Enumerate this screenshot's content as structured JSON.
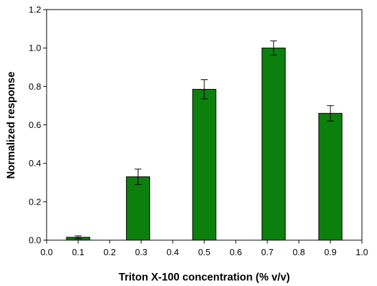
{
  "chart_data": {
    "type": "bar",
    "x": [
      0.1,
      0.29,
      0.5,
      0.72,
      0.9
    ],
    "values": [
      0.015,
      0.33,
      0.785,
      1.0,
      0.66
    ],
    "errors": [
      0.007,
      0.04,
      0.05,
      0.037,
      0.04
    ],
    "title": "",
    "xlabel": "Triton X-100 concentration (% v/v)",
    "ylabel": "Normalized response",
    "xlim": [
      0.0,
      1.0
    ],
    "ylim": [
      0.0,
      1.2
    ],
    "x_ticks": [
      "0.0",
      "0.1",
      "0.2",
      "0.3",
      "0.4",
      "0.5",
      "0.6",
      "0.7",
      "0.8",
      "0.9",
      "1.0"
    ],
    "y_ticks": [
      "0.0",
      "0.2",
      "0.4",
      "0.6",
      "0.8",
      "1.0",
      "1.2"
    ],
    "error_bars": true,
    "grid": false,
    "legend": false,
    "bar_color": "#0c800c",
    "edge_color": "#000000"
  }
}
